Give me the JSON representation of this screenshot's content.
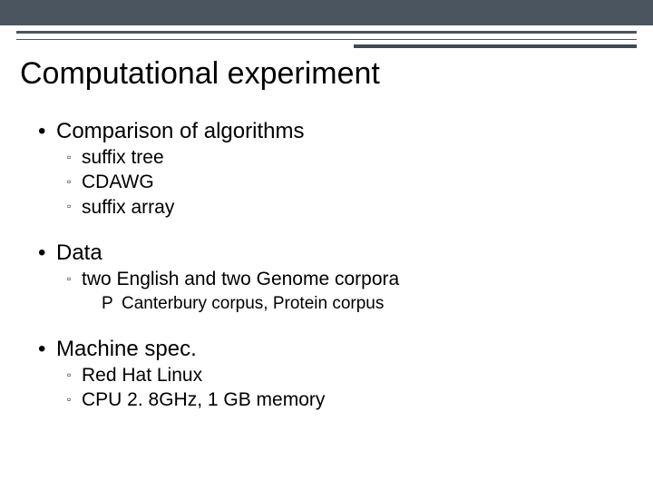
{
  "colors": {
    "topbar": "#4a5560",
    "rule": "#4a5560",
    "accent": "#3f4a54",
    "text": "#000000",
    "background": "#ffffff"
  },
  "title": "Computational experiment",
  "bullets": {
    "b1": {
      "label": "Comparison of algorithms",
      "subs": {
        "s1": "suffix tree",
        "s2": "CDAWG",
        "s3": "suffix array"
      }
    },
    "b2": {
      "label": "Data",
      "subs": {
        "s1": "two English and two Genome corpora"
      },
      "subsub": {
        "t1": "Canterbury corpus, Protein corpus"
      }
    },
    "b3": {
      "label": "Machine spec.",
      "subs": {
        "s1": "Red Hat Linux",
        "s2": "CPU 2. 8GHz,  1 GB memory"
      }
    }
  },
  "glyphs": {
    "dot": "•",
    "square": "▫",
    "deco": "P"
  },
  "fonts": {
    "title_size": 34,
    "lvl1_size": 24,
    "lvl2_size": 21,
    "lvl3_size": 19
  }
}
